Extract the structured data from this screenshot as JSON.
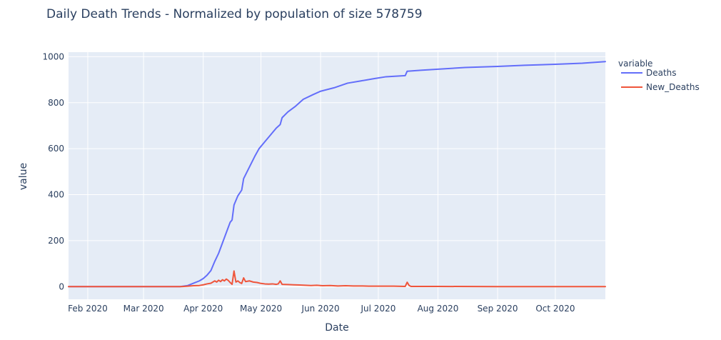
{
  "chart_data": {
    "type": "line",
    "title": "Daily Death Trends - Normalized by population of size 578759",
    "xlabel": "Date",
    "ylabel": "value",
    "legend_title": "variable",
    "legend_position": "top-right",
    "grid": true,
    "xlim": [
      "2020-01-22",
      "2020-10-27"
    ],
    "ylim": [
      -55,
      1020
    ],
    "x_ticks": [
      {
        "date": "2020-02-01",
        "label": "Feb 2020"
      },
      {
        "date": "2020-03-01",
        "label": "Mar 2020"
      },
      {
        "date": "2020-04-01",
        "label": "Apr 2020"
      },
      {
        "date": "2020-05-01",
        "label": "May 2020"
      },
      {
        "date": "2020-06-01",
        "label": "Jun 2020"
      },
      {
        "date": "2020-07-01",
        "label": "Jul 2020"
      },
      {
        "date": "2020-08-01",
        "label": "Aug 2020"
      },
      {
        "date": "2020-09-01",
        "label": "Sep 2020"
      },
      {
        "date": "2020-10-01",
        "label": "Oct 2020"
      }
    ],
    "y_ticks": [
      0,
      200,
      400,
      600,
      800,
      1000
    ],
    "series": [
      {
        "name": "Deaths",
        "color": "#636efa",
        "points": [
          [
            "2020-01-22",
            0
          ],
          [
            "2020-03-20",
            0
          ],
          [
            "2020-03-24",
            5
          ],
          [
            "2020-03-27",
            15
          ],
          [
            "2020-03-30",
            25
          ],
          [
            "2020-04-01",
            35
          ],
          [
            "2020-04-03",
            50
          ],
          [
            "2020-04-05",
            70
          ],
          [
            "2020-04-07",
            110
          ],
          [
            "2020-04-09",
            145
          ],
          [
            "2020-04-11",
            190
          ],
          [
            "2020-04-13",
            235
          ],
          [
            "2020-04-15",
            280
          ],
          [
            "2020-04-16",
            290
          ],
          [
            "2020-04-17",
            355
          ],
          [
            "2020-04-19",
            395
          ],
          [
            "2020-04-21",
            420
          ],
          [
            "2020-04-22",
            470
          ],
          [
            "2020-04-25",
            520
          ],
          [
            "2020-04-28",
            570
          ],
          [
            "2020-04-30",
            600
          ],
          [
            "2020-05-03",
            630
          ],
          [
            "2020-05-06",
            660
          ],
          [
            "2020-05-09",
            690
          ],
          [
            "2020-05-11",
            705
          ],
          [
            "2020-05-12",
            735
          ],
          [
            "2020-05-15",
            760
          ],
          [
            "2020-05-19",
            785
          ],
          [
            "2020-05-23",
            815
          ],
          [
            "2020-05-28",
            835
          ],
          [
            "2020-06-01",
            850
          ],
          [
            "2020-06-08",
            865
          ],
          [
            "2020-06-15",
            885
          ],
          [
            "2020-06-22",
            895
          ],
          [
            "2020-06-29",
            905
          ],
          [
            "2020-07-05",
            913
          ],
          [
            "2020-07-15",
            918
          ],
          [
            "2020-07-16",
            937
          ],
          [
            "2020-07-23",
            941
          ],
          [
            "2020-08-01",
            946
          ],
          [
            "2020-08-15",
            953
          ],
          [
            "2020-09-01",
            958
          ],
          [
            "2020-09-15",
            963
          ],
          [
            "2020-10-01",
            967
          ],
          [
            "2020-10-15",
            972
          ],
          [
            "2020-10-27",
            979
          ]
        ]
      },
      {
        "name": "New_Deaths",
        "color": "#ef553b",
        "points": [
          [
            "2020-01-22",
            0
          ],
          [
            "2020-03-20",
            0
          ],
          [
            "2020-03-24",
            2
          ],
          [
            "2020-03-27",
            4
          ],
          [
            "2020-03-30",
            5
          ],
          [
            "2020-04-01",
            8
          ],
          [
            "2020-04-03",
            12
          ],
          [
            "2020-04-05",
            15
          ],
          [
            "2020-04-07",
            25
          ],
          [
            "2020-04-08",
            20
          ],
          [
            "2020-04-09",
            28
          ],
          [
            "2020-04-10",
            22
          ],
          [
            "2020-04-11",
            30
          ],
          [
            "2020-04-12",
            25
          ],
          [
            "2020-04-13",
            33
          ],
          [
            "2020-04-14",
            27
          ],
          [
            "2020-04-15",
            18
          ],
          [
            "2020-04-16",
            10
          ],
          [
            "2020-04-17",
            68
          ],
          [
            "2020-04-18",
            20
          ],
          [
            "2020-04-19",
            25
          ],
          [
            "2020-04-20",
            18
          ],
          [
            "2020-04-21",
            14
          ],
          [
            "2020-04-22",
            38
          ],
          [
            "2020-04-23",
            22
          ],
          [
            "2020-04-25",
            25
          ],
          [
            "2020-04-27",
            20
          ],
          [
            "2020-04-29",
            18
          ],
          [
            "2020-05-01",
            14
          ],
          [
            "2020-05-03",
            12
          ],
          [
            "2020-05-05",
            11
          ],
          [
            "2020-05-07",
            12
          ],
          [
            "2020-05-09",
            10
          ],
          [
            "2020-05-10",
            12
          ],
          [
            "2020-05-11",
            25
          ],
          [
            "2020-05-12",
            10
          ],
          [
            "2020-05-15",
            9
          ],
          [
            "2020-05-18",
            8
          ],
          [
            "2020-05-21",
            7
          ],
          [
            "2020-05-24",
            6
          ],
          [
            "2020-05-27",
            5
          ],
          [
            "2020-05-30",
            6
          ],
          [
            "2020-06-02",
            4
          ],
          [
            "2020-06-06",
            5
          ],
          [
            "2020-06-10",
            3
          ],
          [
            "2020-06-14",
            4
          ],
          [
            "2020-06-18",
            3
          ],
          [
            "2020-06-22",
            3
          ],
          [
            "2020-06-26",
            2
          ],
          [
            "2020-07-02",
            2
          ],
          [
            "2020-07-09",
            2
          ],
          [
            "2020-07-15",
            1
          ],
          [
            "2020-07-16",
            19
          ],
          [
            "2020-07-17",
            5
          ],
          [
            "2020-07-18",
            1
          ],
          [
            "2020-08-01",
            1
          ],
          [
            "2020-09-01",
            0
          ],
          [
            "2020-10-01",
            0
          ],
          [
            "2020-10-27",
            0
          ]
        ]
      }
    ]
  }
}
